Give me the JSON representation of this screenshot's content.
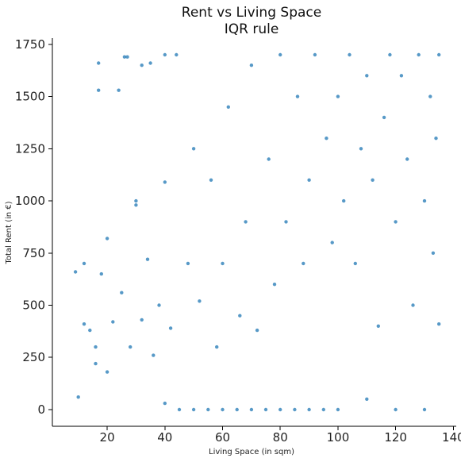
{
  "chart_data": {
    "type": "scatter",
    "title": "Rent vs Living Space",
    "subtitle": "IQR rule",
    "xlabel": "Living Space (in sqm)",
    "ylabel": "Total Rent (in €)",
    "xlim": [
      1,
      141
    ],
    "ylim": [
      -80,
      1780
    ],
    "xticks": [
      20,
      40,
      60,
      80,
      100,
      120,
      140
    ],
    "yticks": [
      0,
      250,
      500,
      750,
      1000,
      1250,
      1500,
      1750
    ],
    "grid": false,
    "color": "#1f77b4",
    "series": [
      {
        "points": [
          [
            10,
            60
          ],
          [
            12,
            410
          ],
          [
            14,
            380
          ],
          [
            16,
            300
          ],
          [
            17,
            1660
          ],
          [
            17,
            1530
          ],
          [
            18,
            650
          ],
          [
            20,
            820
          ],
          [
            20,
            180
          ],
          [
            22,
            420
          ],
          [
            24,
            1530
          ],
          [
            25,
            560
          ],
          [
            26,
            1690
          ],
          [
            27,
            1690
          ],
          [
            28,
            300
          ],
          [
            30,
            1000
          ],
          [
            30,
            980
          ],
          [
            32,
            430
          ],
          [
            34,
            720
          ],
          [
            35,
            1660
          ],
          [
            36,
            260
          ],
          [
            38,
            500
          ],
          [
            40,
            1700
          ],
          [
            40,
            1090
          ],
          [
            42,
            390
          ],
          [
            44,
            1700
          ],
          [
            45,
            0
          ],
          [
            48,
            700
          ],
          [
            50,
            0
          ],
          [
            50,
            1250
          ],
          [
            52,
            520
          ],
          [
            55,
            0
          ],
          [
            56,
            1100
          ],
          [
            58,
            300
          ],
          [
            60,
            0
          ],
          [
            60,
            700
          ],
          [
            62,
            1450
          ],
          [
            65,
            0
          ],
          [
            66,
            450
          ],
          [
            68,
            900
          ],
          [
            70,
            0
          ],
          [
            70,
            1650
          ],
          [
            72,
            380
          ],
          [
            75,
            0
          ],
          [
            76,
            1200
          ],
          [
            78,
            600
          ],
          [
            80,
            0
          ],
          [
            80,
            1700
          ],
          [
            82,
            900
          ],
          [
            85,
            0
          ],
          [
            86,
            1500
          ],
          [
            88,
            700
          ],
          [
            90,
            0
          ],
          [
            90,
            1100
          ],
          [
            92,
            1700
          ],
          [
            95,
            0
          ],
          [
            96,
            1300
          ],
          [
            98,
            800
          ],
          [
            100,
            0
          ],
          [
            100,
            1500
          ],
          [
            102,
            1000
          ],
          [
            104,
            1700
          ],
          [
            106,
            700
          ],
          [
            108,
            1250
          ],
          [
            110,
            50
          ],
          [
            110,
            1600
          ],
          [
            112,
            1100
          ],
          [
            114,
            400
          ],
          [
            116,
            1400
          ],
          [
            118,
            1700
          ],
          [
            120,
            0
          ],
          [
            120,
            900
          ],
          [
            122,
            1600
          ],
          [
            124,
            1200
          ],
          [
            126,
            500
          ],
          [
            128,
            1700
          ],
          [
            130,
            0
          ],
          [
            130,
            1000
          ],
          [
            132,
            1500
          ],
          [
            135,
            1700
          ],
          [
            135,
            410
          ],
          [
            134,
            1300
          ],
          [
            133,
            750
          ],
          [
            12,
            700
          ],
          [
            9,
            660
          ],
          [
            16,
            220
          ],
          [
            32,
            1650
          ],
          [
            40,
            30
          ]
        ]
      }
    ]
  }
}
